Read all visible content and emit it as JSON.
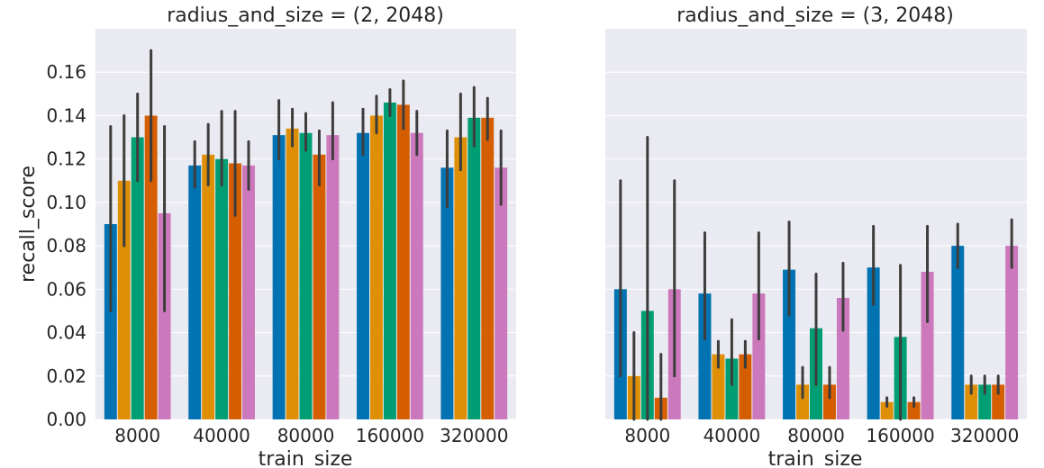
{
  "chart_data": [
    {
      "type": "bar",
      "title": "radius_and_size = (2, 2048)",
      "xlabel": "train_size",
      "ylabel": "recall_score",
      "ylim": [
        0,
        0.18
      ],
      "yticks": [
        "0.00",
        "0.02",
        "0.04",
        "0.06",
        "0.08",
        "0.10",
        "0.12",
        "0.14",
        "0.16"
      ],
      "categories": [
        "8000",
        "40000",
        "80000",
        "160000",
        "320000"
      ],
      "series": [
        {
          "color": "#0173b2",
          "values": [
            0.09,
            0.117,
            0.131,
            0.132,
            0.116
          ],
          "err_low": [
            0.05,
            0.107,
            0.12,
            0.122,
            0.098
          ],
          "err_high": [
            0.135,
            0.128,
            0.147,
            0.143,
            0.133
          ]
        },
        {
          "color": "#de8f05",
          "values": [
            0.11,
            0.122,
            0.134,
            0.14,
            0.13
          ],
          "err_low": [
            0.08,
            0.108,
            0.126,
            0.132,
            0.115
          ],
          "err_high": [
            0.14,
            0.136,
            0.143,
            0.149,
            0.15
          ]
        },
        {
          "color": "#029e73",
          "values": [
            0.13,
            0.12,
            0.132,
            0.146,
            0.139
          ],
          "err_low": [
            0.11,
            0.108,
            0.124,
            0.14,
            0.126
          ],
          "err_high": [
            0.15,
            0.142,
            0.141,
            0.152,
            0.153
          ]
        },
        {
          "color": "#d55e00",
          "values": [
            0.14,
            0.118,
            0.122,
            0.145,
            0.139
          ],
          "err_low": [
            0.11,
            0.094,
            0.108,
            0.134,
            0.129
          ],
          "err_high": [
            0.17,
            0.142,
            0.133,
            0.156,
            0.148
          ]
        },
        {
          "color": "#cc78bc",
          "values": [
            0.095,
            0.117,
            0.131,
            0.132,
            0.116
          ],
          "err_low": [
            0.05,
            0.106,
            0.12,
            0.122,
            0.099
          ],
          "err_high": [
            0.135,
            0.128,
            0.146,
            0.142,
            0.133
          ]
        }
      ]
    },
    {
      "type": "bar",
      "title": "radius_and_size = (3, 2048)",
      "xlabel": "train_size",
      "ylabel": "",
      "ylim": [
        0,
        0.18
      ],
      "categories": [
        "8000",
        "40000",
        "80000",
        "160000",
        "320000"
      ],
      "series": [
        {
          "color": "#0173b2",
          "values": [
            0.06,
            0.058,
            0.069,
            0.07,
            0.08
          ],
          "err_low": [
            0.02,
            0.037,
            0.048,
            0.053,
            0.07
          ],
          "err_high": [
            0.11,
            0.086,
            0.091,
            0.089,
            0.09
          ]
        },
        {
          "color": "#de8f05",
          "values": [
            0.02,
            0.03,
            0.016,
            0.008,
            0.016
          ],
          "err_low": [
            0.0,
            0.024,
            0.01,
            0.006,
            0.012
          ],
          "err_high": [
            0.04,
            0.036,
            0.024,
            0.01,
            0.02
          ]
        },
        {
          "color": "#029e73",
          "values": [
            0.05,
            0.028,
            0.042,
            0.038,
            0.016
          ],
          "err_low": [
            0.0,
            0.016,
            0.016,
            0.0,
            0.012
          ],
          "err_high": [
            0.13,
            0.046,
            0.067,
            0.071,
            0.02
          ]
        },
        {
          "color": "#d55e00",
          "values": [
            0.01,
            0.03,
            0.016,
            0.008,
            0.016
          ],
          "err_low": [
            0.0,
            0.024,
            0.01,
            0.006,
            0.012
          ],
          "err_high": [
            0.03,
            0.036,
            0.024,
            0.01,
            0.02
          ]
        },
        {
          "color": "#cc78bc",
          "values": [
            0.06,
            0.058,
            0.056,
            0.068,
            0.08
          ],
          "err_low": [
            0.02,
            0.037,
            0.041,
            0.045,
            0.07
          ],
          "err_high": [
            0.11,
            0.086,
            0.072,
            0.089,
            0.092
          ]
        }
      ]
    }
  ]
}
